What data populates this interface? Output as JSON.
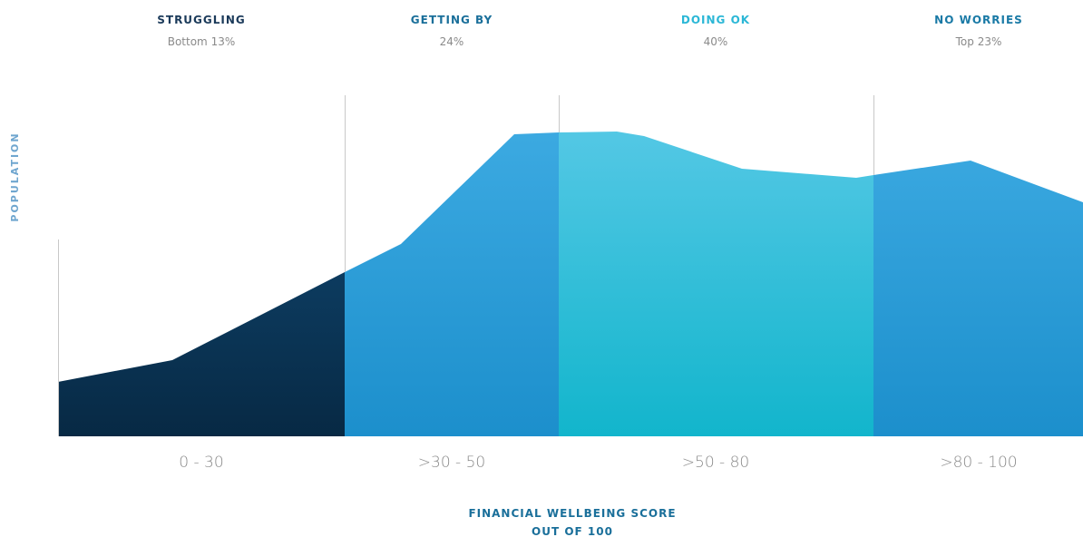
{
  "segments": [
    {
      "title": "STRUGGLING",
      "share": "Bottom 13%",
      "category": "0 - 30",
      "color": "#1b3a5a"
    },
    {
      "title": "GETTING BY",
      "share": "24%",
      "category": ">30 - 50",
      "color": "#1a6f9a"
    },
    {
      "title": "DOING OK",
      "share": "40%",
      "category": ">50 - 80",
      "color": "#2bb7d6"
    },
    {
      "title": "NO WORRIES",
      "share": "Top 23%",
      "category": ">80 - 100",
      "color": "#1a7aa6"
    }
  ],
  "y_axis_label": "POPULATION",
  "x_axis_label": [
    "FINANCIAL WELLBEING SCORE",
    "OUT OF 100"
  ]
}
